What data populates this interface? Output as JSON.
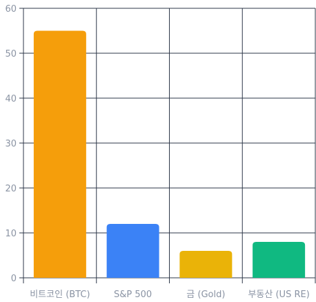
{
  "chart_data": {
    "type": "bar",
    "categories": [
      "비트코인 (BTC)",
      "S&P 500",
      "금 (Gold)",
      "부동산 (US RE)"
    ],
    "values": [
      55,
      12,
      6,
      8
    ],
    "colors": [
      "#f59e0b",
      "#3b82f6",
      "#eab308",
      "#10b981"
    ],
    "ylim": [
      0,
      60
    ],
    "yticks": [
      0,
      10,
      20,
      30,
      40,
      50,
      60
    ],
    "grid": true,
    "gridColor": "#2d3748",
    "legend": "none"
  }
}
